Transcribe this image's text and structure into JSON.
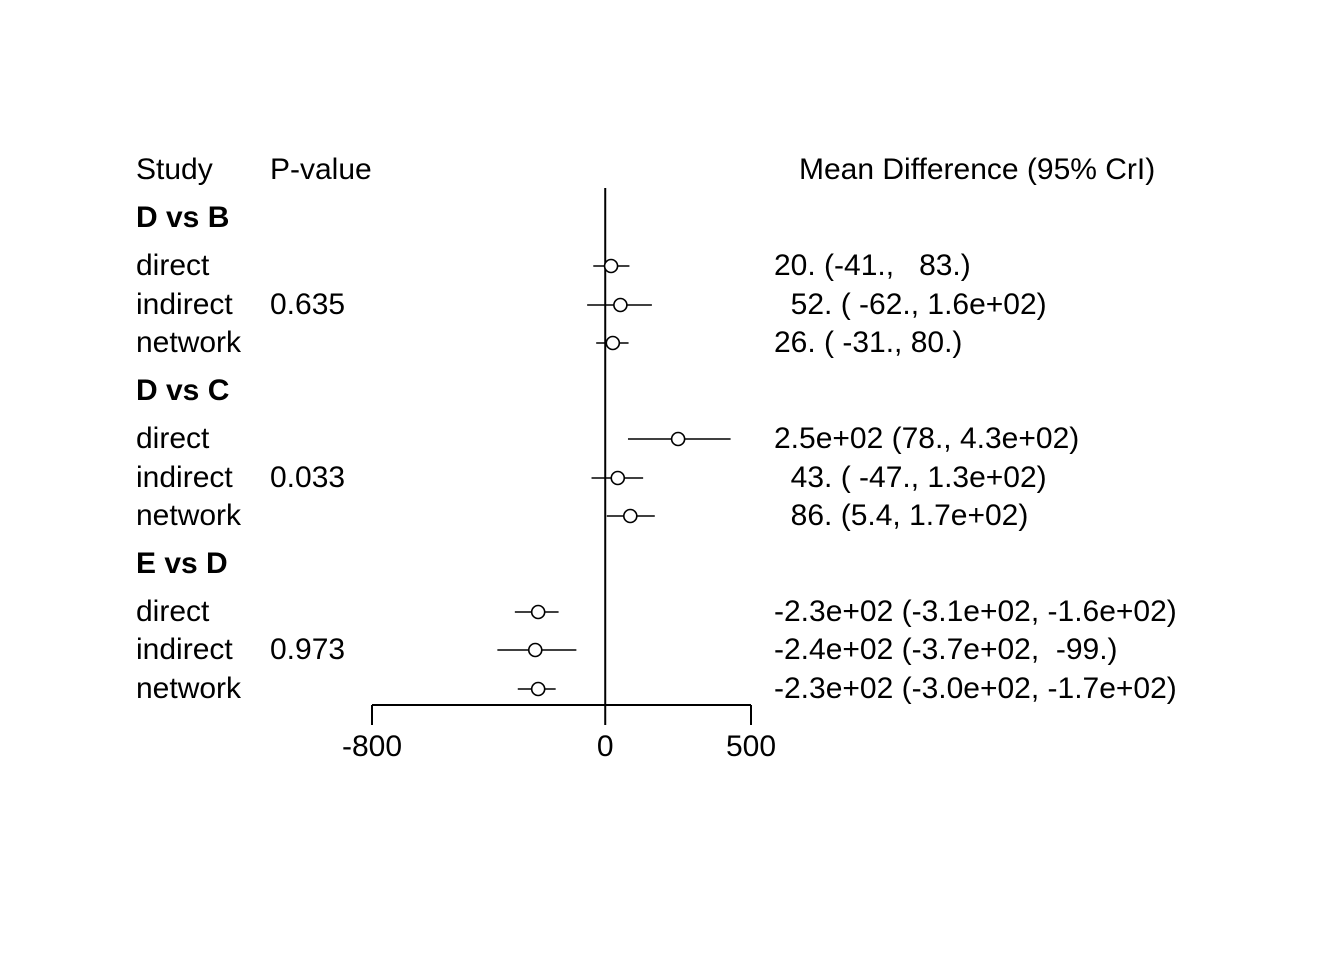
{
  "headers": {
    "study": "Study",
    "pvalue": "P-value",
    "estimate": "Mean Difference (95% CrI)"
  },
  "chart_data": {
    "type": "forest",
    "xlim": [
      -800,
      500
    ],
    "x_ticks": [
      -800,
      0,
      500
    ],
    "x_tick_labels": [
      "-800",
      "0",
      "500"
    ],
    "reference_line": 0,
    "marker": "open-circle",
    "groups": [
      {
        "title": "D vs B",
        "pvalue": "0.635",
        "rows": [
          {
            "label": "direct",
            "mean": 20,
            "lower": -41,
            "upper": 83,
            "text": "20. (-41.,   83.)"
          },
          {
            "label": "indirect",
            "mean": 52,
            "lower": -62,
            "upper": 160,
            "text": "  52. ( -62., 1.6e+02)"
          },
          {
            "label": "network",
            "mean": 26,
            "lower": -31,
            "upper": 80,
            "text": "26. ( -31., 80.)"
          }
        ]
      },
      {
        "title": "D vs C",
        "pvalue": "0.033",
        "rows": [
          {
            "label": "direct",
            "mean": 250,
            "lower": 78,
            "upper": 430,
            "text": "2.5e+02 (78., 4.3e+02)"
          },
          {
            "label": "indirect",
            "mean": 43,
            "lower": -47,
            "upper": 130,
            "text": "  43. ( -47., 1.3e+02)"
          },
          {
            "label": "network",
            "mean": 86,
            "lower": 5.4,
            "upper": 170,
            "text": "  86. (5.4, 1.7e+02)"
          }
        ]
      },
      {
        "title": "E vs D",
        "pvalue": "0.973",
        "rows": [
          {
            "label": "direct",
            "mean": -230,
            "lower": -310,
            "upper": -160,
            "text": "-2.3e+02 (-3.1e+02, -1.6e+02)"
          },
          {
            "label": "indirect",
            "mean": -240,
            "lower": -370,
            "upper": -99,
            "text": "-2.4e+02 (-3.7e+02,  -99.)"
          },
          {
            "label": "network",
            "mean": -230,
            "lower": -300,
            "upper": -170,
            "text": "-2.3e+02 (-3.0e+02, -1.7e+02)"
          }
        ]
      }
    ]
  }
}
